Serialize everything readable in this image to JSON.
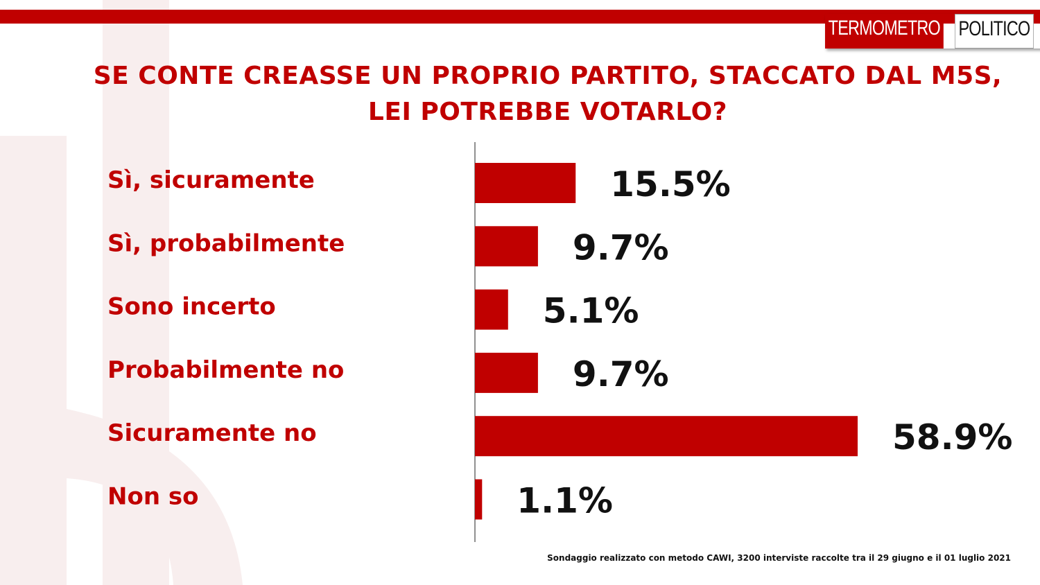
{
  "brand": {
    "logo_part_a": "TERMOMETRO",
    "logo_part_b": "POLITICO",
    "accent_color": "#c00000"
  },
  "title": "SE CONTE CREASSE UN PROPRIO PARTITO, STACCATO DAL M5S, LEI POTREBBE VOTARLO?",
  "chart_data": {
    "type": "bar",
    "orientation": "horizontal",
    "title": "SE CONTE CREASSE UN PROPRIO PARTITO, STACCATO DAL M5S, LEI POTREBBE VOTARLO?",
    "categories": [
      "Sì, sicuramente",
      "Sì, probabilmente",
      "Sono incerto",
      "Probabilmente no",
      "Sicuramente no",
      "Non so"
    ],
    "values": [
      15.5,
      9.7,
      5.1,
      9.7,
      58.9,
      1.1
    ],
    "value_labels": [
      "15.5%",
      "9.7%",
      "5.1%",
      "9.7%",
      "58.9%",
      "1.1%"
    ],
    "unit": "%",
    "xlim": [
      0,
      60
    ],
    "grid": false,
    "legend": "none",
    "bar_color": "#c00000"
  },
  "footnote": "Sondaggio realizzato con metodo CAWI, 3200 interviste raccolte tra il 29 giugno  e il 01 luglio 2021"
}
